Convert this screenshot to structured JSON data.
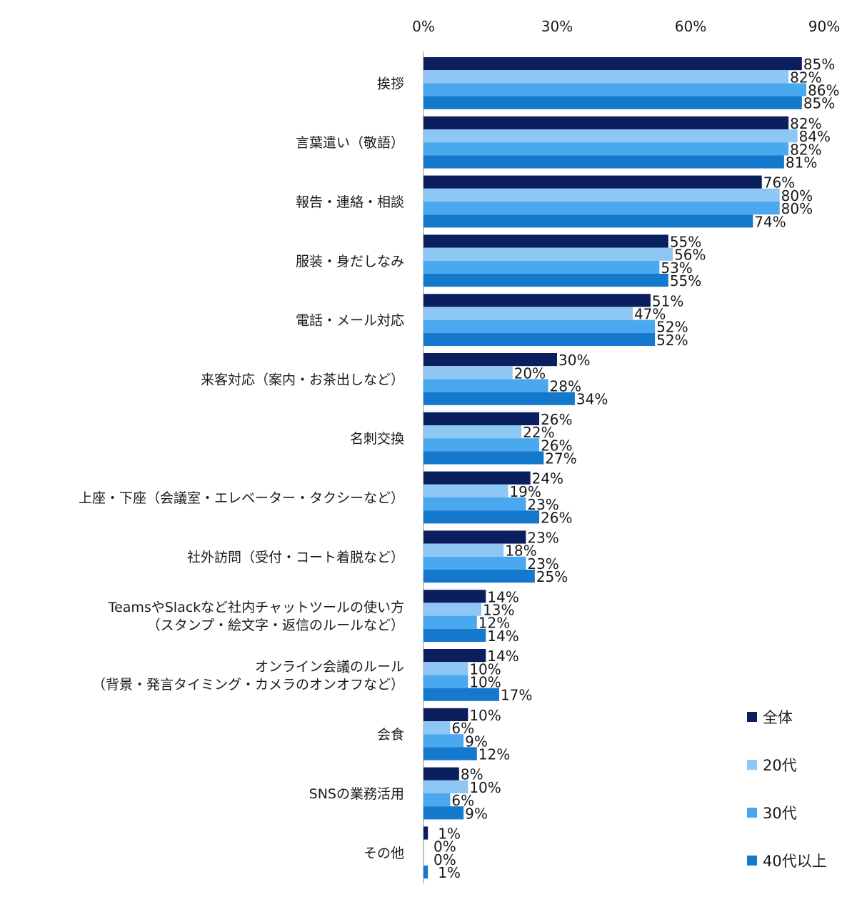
{
  "chart_data": {
    "type": "bar",
    "orientation": "horizontal",
    "title": "",
    "xlabel": "",
    "ylabel": "",
    "xlim": [
      0,
      90
    ],
    "x_ticks": [
      "0%",
      "30%",
      "60%",
      "90%"
    ],
    "x_tick_values": [
      0,
      30,
      60,
      90
    ],
    "grid": false,
    "legend_placement": "bottom-right",
    "categories": [
      [
        "挨拶"
      ],
      [
        "言葉遣い（敬語）"
      ],
      [
        "報告・連絡・相談"
      ],
      [
        "服装・身だしなみ"
      ],
      [
        "電話・メール対応"
      ],
      [
        "来客対応（案内・お茶出しなど）"
      ],
      [
        "名刺交換"
      ],
      [
        "上座・下座（会議室・エレベーター・タクシーなど）"
      ],
      [
        "社外訪問（受付・コート着脱など）"
      ],
      [
        "TeamsやSlackなど社内チャットツールの使い方",
        "（スタンプ・絵文字・返信のルールなど）"
      ],
      [
        "オンライン会議のルール",
        "（背景・発言タイミング・カメラのオンオフなど）"
      ],
      [
        "会食"
      ],
      [
        "SNSの業務活用"
      ],
      [
        "その他"
      ]
    ],
    "series": [
      {
        "name": "全体",
        "color": "#0b1f5f",
        "values": [
          85,
          82,
          76,
          55,
          51,
          30,
          26,
          24,
          23,
          14,
          14,
          10,
          8,
          1
        ]
      },
      {
        "name": "20代",
        "color": "#8fc7f4",
        "values": [
          82,
          84,
          80,
          56,
          47,
          20,
          22,
          19,
          18,
          13,
          10,
          6,
          10,
          0
        ]
      },
      {
        "name": "30代",
        "color": "#4aa9ee",
        "values": [
          86,
          82,
          80,
          53,
          52,
          28,
          26,
          23,
          23,
          12,
          10,
          9,
          6,
          0
        ]
      },
      {
        "name": "40代以上",
        "color": "#1479cc",
        "values": [
          85,
          81,
          74,
          55,
          52,
          34,
          27,
          26,
          25,
          14,
          17,
          12,
          9,
          1
        ]
      }
    ],
    "value_format": "{v}%"
  }
}
